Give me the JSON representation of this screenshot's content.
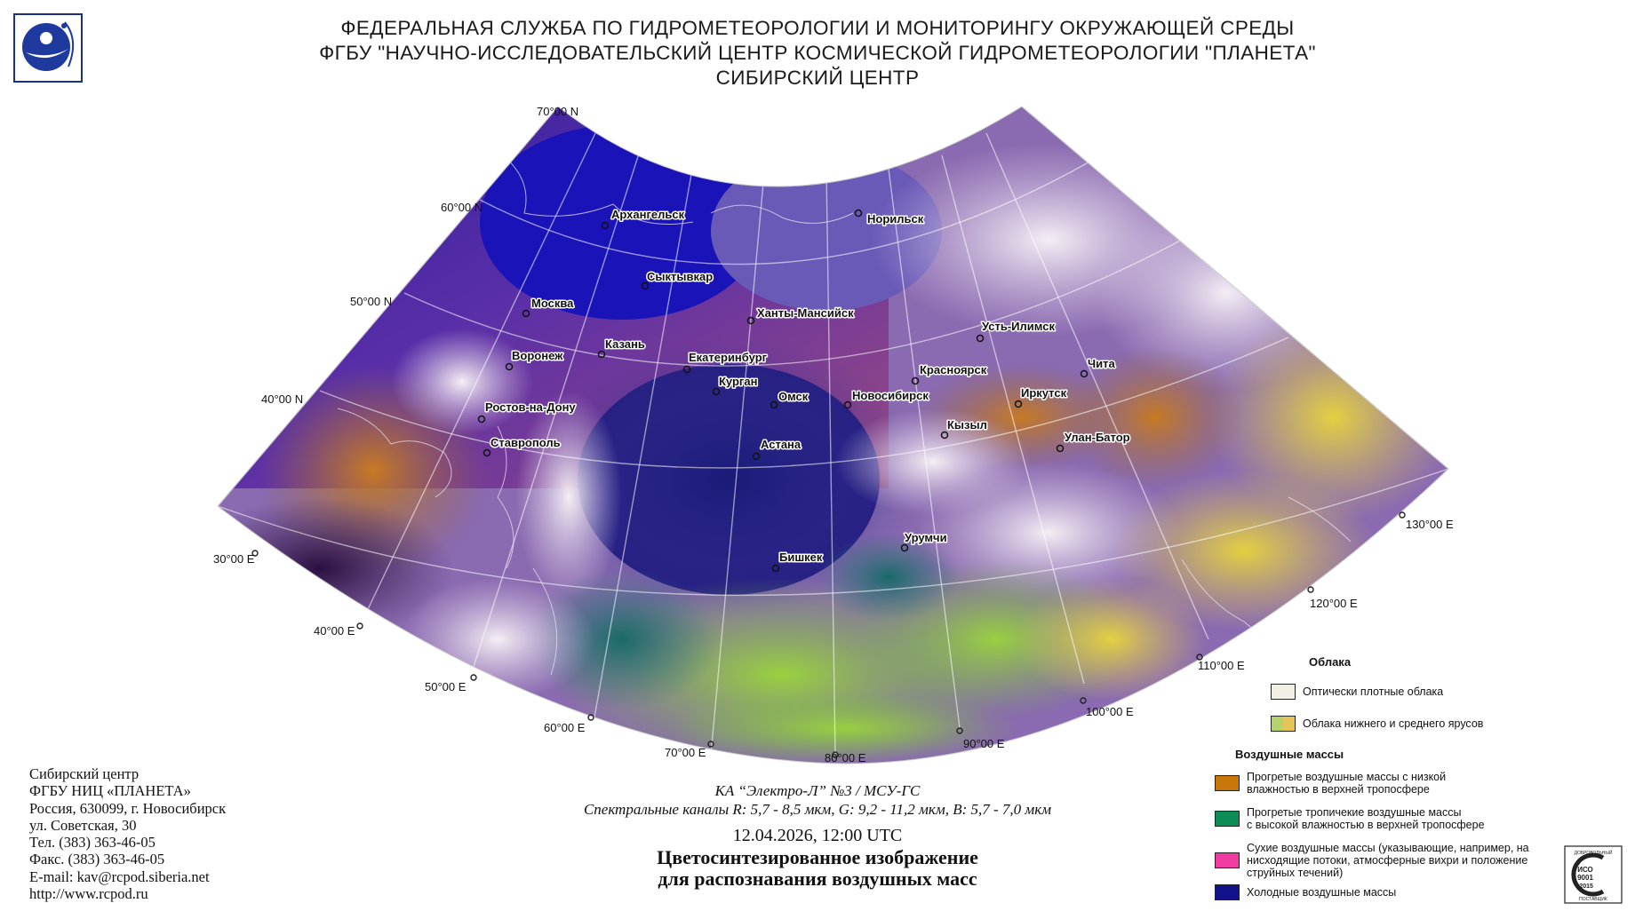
{
  "header": {
    "line1": "ФЕДЕРАЛЬНАЯ СЛУЖБА ПО ГИДРОМЕТЕОРОЛОГИИ И МОНИТОРИНГУ ОКРУЖАЮЩЕЙ СРЕДЫ",
    "line2": "ФГБУ \"НАУЧНО-ИССЛЕДОВАТЕЛЬСКИЙ ЦЕНТР КОСМИЧЕСКОЙ ГИДРОМЕТЕОРОЛОГИИ \"ПЛАНЕТА\"",
    "line3": "СИБИРСКИЙ ЦЕНТР"
  },
  "map": {
    "latitude_labels": [
      "70°00 N",
      "60°00 N",
      "50°00 N",
      "40°00 N"
    ],
    "longitude_labels": [
      "30°00 E",
      "40°00 E",
      "50°00 E",
      "60°00 E",
      "70°00 E",
      "80°00 E",
      "90°00 E",
      "100°00 E",
      "110°00 E",
      "120°00 E",
      "130°00 E"
    ],
    "cities": [
      {
        "name": "Архангельск"
      },
      {
        "name": "Норильск"
      },
      {
        "name": "Сыктывкар"
      },
      {
        "name": "Москва"
      },
      {
        "name": "Ханты-Мансийск"
      },
      {
        "name": "Усть-Илимск"
      },
      {
        "name": "Казань"
      },
      {
        "name": "Воронеж"
      },
      {
        "name": "Екатеринбург"
      },
      {
        "name": "Красноярск"
      },
      {
        "name": "Чита"
      },
      {
        "name": "Курган"
      },
      {
        "name": "Омск"
      },
      {
        "name": "Новосибирск"
      },
      {
        "name": "Иркутск"
      },
      {
        "name": "Ростов-на-Дону"
      },
      {
        "name": "Кызыл"
      },
      {
        "name": "Улан-Батор"
      },
      {
        "name": "Ставрополь"
      },
      {
        "name": "Астана"
      },
      {
        "name": "Урумчи"
      },
      {
        "name": "Бишкек"
      }
    ]
  },
  "contacts": {
    "line1": "Сибирский центр",
    "line2": "ФГБУ НИЦ «ПЛАНЕТА»",
    "line3": "Россия, 630099, г. Новосибирск",
    "line4": "ул. Советская, 30",
    "line5": "Тел. (383) 363-46-05",
    "line6": "Факс. (383) 363-46-05",
    "line7": "E-mail: kav@rcpod.siberia.net",
    "line8": "http://www.rcpod.ru"
  },
  "caption": {
    "satellite": "КА “Электро-Л” №3 / МСУ-ГС",
    "channels": "Спектральные каналы R: 5,7 - 8,5 мкм, G: 9,2 - 11,2 мкм, B: 5,7 - 7,0 мкм",
    "datetime": "12.04.2026, 12:00 UTC",
    "title1": "Цветосинтезированное изображение",
    "title2": "для распознавания воздушных масс"
  },
  "legend": {
    "clouds_title": "Облака",
    "clouds": [
      {
        "label": "Оптически плотные облака",
        "color": "#f2f0e4"
      },
      {
        "label": "Облака нижнего и среднего ярусов",
        "color": "#b6d36a",
        "color2": "#e6c45a"
      }
    ],
    "airmass_title": "Воздушные массы",
    "airmasses": [
      {
        "label1": "Прогретые воздушные массы с низкой",
        "label2": "влажностью в верхней тропосфере",
        "label3": "",
        "color": "#c8780a"
      },
      {
        "label1": "Прогретые тропичекие воздушные массы",
        "label2": "с высокой влажностью в верхней тропосфере",
        "label3": "",
        "color": "#0d8c55"
      },
      {
        "label1": "Сухие воздушные массы (указывающие, например, на",
        "label2": "нисходящие потоки, атмосферные вихри и положение",
        "label3": "струйных течений)",
        "color": "#f03ca0"
      },
      {
        "label1": "Холодные воздушные массы",
        "label2": "",
        "label3": "",
        "color": "#12128c"
      }
    ]
  },
  "iso": {
    "text1": "ДОБРОВОЛЬНЫЙ",
    "text2": "ИСО",
    "text3": "9001",
    "text4": "-2015",
    "text5": "ПОСТАВЩИК"
  }
}
